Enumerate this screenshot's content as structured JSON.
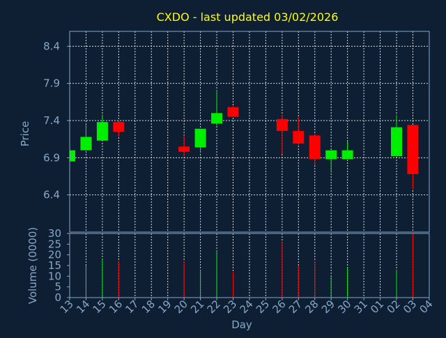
{
  "chart_data": {
    "type": "candlestick",
    "title": "CXDO - last updated 03/02/2026",
    "xlabel": "Day",
    "ylabel_price": "Price",
    "ylabel_volume": "Volume (0000)",
    "x_ticks": [
      "13",
      "14",
      "15",
      "16",
      "17",
      "18",
      "19",
      "20",
      "21",
      "22",
      "23",
      "24",
      "25",
      "26",
      "27",
      "28",
      "29",
      "30",
      "31",
      "01",
      "02",
      "03",
      "04"
    ],
    "price_ticks": [
      "6.4",
      "6.9",
      "7.4",
      "7.9",
      "8.4"
    ],
    "volume_ticks": [
      "0",
      "5",
      "10",
      "15",
      "20",
      "25",
      "30"
    ],
    "price_ylim": [
      5.9,
      8.6
    ],
    "volume_ylim": [
      0,
      30
    ],
    "grid": true,
    "colors": {
      "up": "#00ee00",
      "down": "#ff0000",
      "title": "#ffff00",
      "axis": "#87a8c8",
      "background": "#0f1f33"
    },
    "candles": [
      {
        "day": "13",
        "open": 6.85,
        "close": 7.0,
        "high": 7.02,
        "low": 6.85,
        "volume": 0
      },
      {
        "day": "14",
        "open": 7.0,
        "close": 7.18,
        "high": 7.35,
        "low": 7.0,
        "volume": 15
      },
      {
        "day": "15",
        "open": 7.13,
        "close": 7.38,
        "high": 7.48,
        "low": 7.13,
        "volume": 18
      },
      {
        "day": "16",
        "open": 7.38,
        "close": 7.25,
        "high": 7.4,
        "low": 7.18,
        "volume": 17
      },
      {
        "day": "20",
        "open": 7.05,
        "close": 6.98,
        "high": 7.2,
        "low": 6.93,
        "volume": 17
      },
      {
        "day": "21",
        "open": 7.04,
        "close": 7.29,
        "high": 7.29,
        "low": 6.97,
        "volume": 13
      },
      {
        "day": "22",
        "open": 7.36,
        "close": 7.5,
        "high": 7.81,
        "low": 7.33,
        "volume": 22
      },
      {
        "day": "23",
        "open": 7.58,
        "close": 7.45,
        "high": 7.6,
        "low": 7.45,
        "volume": 12
      },
      {
        "day": "26",
        "open": 7.42,
        "close": 7.26,
        "high": 7.48,
        "low": 6.95,
        "volume": 26
      },
      {
        "day": "27",
        "open": 7.26,
        "close": 7.09,
        "high": 7.45,
        "low": 7.07,
        "volume": 15
      },
      {
        "day": "28",
        "open": 7.2,
        "close": 6.88,
        "high": 7.22,
        "low": 6.8,
        "volume": 17
      },
      {
        "day": "29",
        "open": 6.88,
        "close": 7.0,
        "high": 7.0,
        "low": 6.7,
        "volume": 10
      },
      {
        "day": "30",
        "open": 6.88,
        "close": 7.0,
        "high": 7.12,
        "low": 6.88,
        "volume": 14
      },
      {
        "day": "02",
        "open": 6.92,
        "close": 7.31,
        "high": 7.48,
        "low": 6.92,
        "volume": 13
      },
      {
        "day": "03",
        "open": 7.34,
        "close": 6.68,
        "high": 7.34,
        "low": 6.48,
        "volume": 30
      }
    ]
  }
}
